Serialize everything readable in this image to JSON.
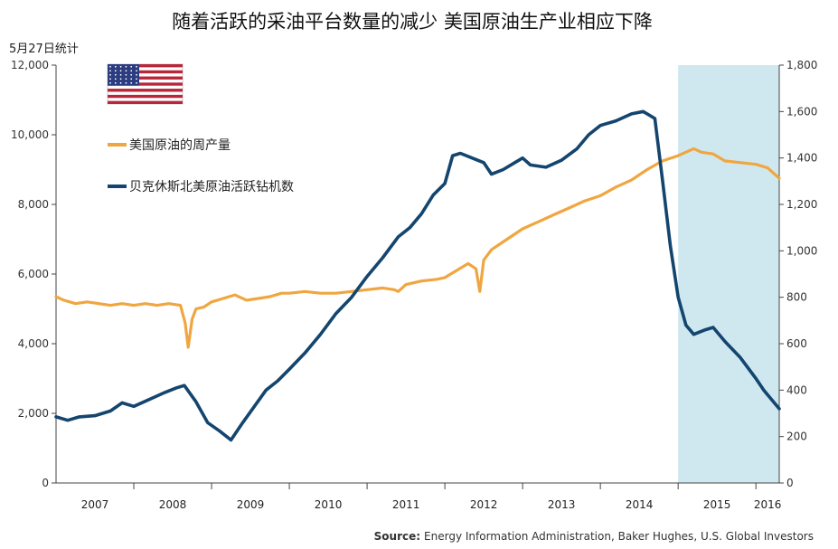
{
  "chart_data": {
    "type": "line",
    "title": "随着活跃的采油平台数量的减少 美国原油生产业相应下降",
    "subtitle": "5月27日统计",
    "source_label": "Source:",
    "source_text": "Energy Information Administration, Baker Hughes, U.S. Global Investors",
    "x_axis": {
      "range": [
        2007,
        2016.3
      ],
      "tick_labels": [
        "2007",
        "2008",
        "2009",
        "2010",
        "2011",
        "2012",
        "2013",
        "2014",
        "2015",
        "2016"
      ]
    },
    "y_left": {
      "range": [
        0,
        12000
      ],
      "tick_values": [
        0,
        2000,
        4000,
        6000,
        8000,
        10000,
        12000
      ],
      "tick_labels": [
        "0",
        "2,000",
        "4,000",
        "6,000",
        "8,000",
        "10,000",
        "12,000"
      ]
    },
    "y_right": {
      "range": [
        0,
        1800
      ],
      "tick_values": [
        0,
        200,
        400,
        600,
        800,
        1000,
        1200,
        1400,
        1600,
        1800
      ],
      "tick_labels": [
        "0",
        "200",
        "400",
        "600",
        "800",
        "1,000",
        "1,200",
        "1,400",
        "1,600",
        "1,800"
      ]
    },
    "highlight_region": {
      "x_start": 2015.0,
      "x_end": 2016.3,
      "color": "#cfe8f0"
    },
    "legend_placement": "top-left",
    "flag_icon": "us-flag-icon",
    "series": [
      {
        "name": "美国原油的周产量",
        "axis": "left",
        "color": "#f0a640",
        "x": [
          2007.0,
          2007.1,
          2007.25,
          2007.4,
          2007.55,
          2007.7,
          2007.85,
          2008.0,
          2008.15,
          2008.3,
          2008.45,
          2008.6,
          2008.66,
          2008.7,
          2008.75,
          2008.8,
          2008.9,
          2009.0,
          2009.15,
          2009.3,
          2009.45,
          2009.6,
          2009.75,
          2009.9,
          2010.0,
          2010.2,
          2010.4,
          2010.6,
          2010.8,
          2011.0,
          2011.2,
          2011.35,
          2011.4,
          2011.5,
          2011.7,
          2011.9,
          2012.0,
          2012.15,
          2012.3,
          2012.4,
          2012.45,
          2012.5,
          2012.6,
          2012.8,
          2013.0,
          2013.2,
          2013.4,
          2013.6,
          2013.8,
          2014.0,
          2014.2,
          2014.4,
          2014.6,
          2014.8,
          2015.0,
          2015.2,
          2015.3,
          2015.45,
          2015.6,
          2015.8,
          2016.0,
          2016.15,
          2016.3
        ],
        "values": [
          5350,
          5250,
          5150,
          5200,
          5150,
          5100,
          5150,
          5100,
          5150,
          5100,
          5150,
          5100,
          4600,
          3900,
          4700,
          5000,
          5050,
          5200,
          5300,
          5400,
          5250,
          5300,
          5350,
          5450,
          5450,
          5500,
          5450,
          5450,
          5500,
          5550,
          5600,
          5550,
          5500,
          5700,
          5800,
          5850,
          5900,
          6100,
          6300,
          6150,
          5500,
          6400,
          6700,
          7000,
          7300,
          7500,
          7700,
          7900,
          8100,
          8250,
          8500,
          8700,
          9000,
          9250,
          9400,
          9600,
          9500,
          9450,
          9250,
          9200,
          9150,
          9050,
          8750
        ]
      },
      {
        "name": "贝克休斯北美原油活跃钻机数",
        "axis": "right",
        "color": "#14456e",
        "x": [
          2007.0,
          2007.15,
          2007.3,
          2007.5,
          2007.7,
          2007.85,
          2008.0,
          2008.2,
          2008.4,
          2008.55,
          2008.65,
          2008.8,
          2008.95,
          2009.1,
          2009.25,
          2009.4,
          2009.55,
          2009.7,
          2009.85,
          2010.0,
          2010.2,
          2010.4,
          2010.6,
          2010.8,
          2011.0,
          2011.2,
          2011.4,
          2011.55,
          2011.7,
          2011.85,
          2012.0,
          2012.1,
          2012.2,
          2012.35,
          2012.5,
          2012.6,
          2012.75,
          2012.9,
          2013.0,
          2013.1,
          2013.3,
          2013.5,
          2013.7,
          2013.85,
          2014.0,
          2014.2,
          2014.4,
          2014.55,
          2014.7,
          2014.8,
          2014.9,
          2015.0,
          2015.1,
          2015.2,
          2015.35,
          2015.45,
          2015.6,
          2015.8,
          2016.0,
          2016.1,
          2016.2,
          2016.3
        ],
        "values": [
          285,
          270,
          285,
          290,
          310,
          345,
          330,
          360,
          390,
          410,
          420,
          350,
          260,
          225,
          185,
          260,
          330,
          400,
          440,
          490,
          560,
          640,
          730,
          800,
          890,
          970,
          1060,
          1100,
          1160,
          1240,
          1290,
          1410,
          1420,
          1400,
          1380,
          1330,
          1350,
          1380,
          1400,
          1370,
          1360,
          1390,
          1440,
          1500,
          1540,
          1560,
          1590,
          1600,
          1570,
          1300,
          1020,
          800,
          680,
          640,
          660,
          670,
          610,
          540,
          450,
          400,
          360,
          320
        ]
      }
    ]
  }
}
